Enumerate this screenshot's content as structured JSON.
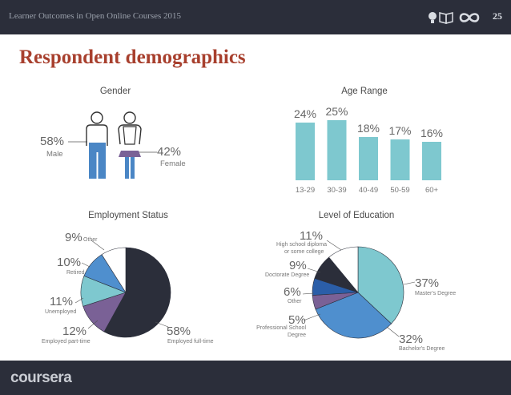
{
  "header": {
    "subtitle": "Learner Outcomes in Open Online Courses 2015",
    "page_number": "25",
    "icons": [
      "lightbulb-icon",
      "book-icon",
      "infinity-icon"
    ]
  },
  "title": "Respondent demographics",
  "footer": {
    "logo": "coursera"
  },
  "colors": {
    "header_bg": "#2b2e3a",
    "title": "#a8402e",
    "teal": "#7ec8cf",
    "navy": "#2b2e3a",
    "purple": "#7a6196",
    "blue": "#4a86c5",
    "steel_blue": "#4f8fce",
    "white": "#ffffff"
  },
  "gender": {
    "heading": "Gender",
    "male_pct": "58%",
    "male_label": "Male",
    "female_pct": "42%",
    "female_label": "Female"
  },
  "age": {
    "heading": "Age Range",
    "ylim": [
      0,
      25
    ]
  },
  "employment": {
    "heading": "Employment Status"
  },
  "education": {
    "heading": "Level of Education"
  },
  "chart_data": [
    {
      "type": "pie",
      "title": "Gender",
      "categories": [
        "Male",
        "Female"
      ],
      "values": [
        58,
        42
      ],
      "labels": [
        "58%",
        "42%"
      ]
    },
    {
      "type": "bar",
      "title": "Age Range",
      "categories": [
        "13-29",
        "30-39",
        "40-49",
        "50-59",
        "60+"
      ],
      "values": [
        24,
        25,
        18,
        17,
        16
      ],
      "labels": [
        "24%",
        "25%",
        "18%",
        "17%",
        "16%"
      ],
      "color": "#7ec8cf",
      "ylim": [
        0,
        25
      ]
    },
    {
      "type": "pie",
      "title": "Employment Status",
      "categories": [
        "Employed full-time",
        "Employed part-time",
        "Unemployed",
        "Retired",
        "Other"
      ],
      "values": [
        58,
        12,
        11,
        10,
        9
      ],
      "labels": [
        "58%",
        "12%",
        "11%",
        "10%",
        "9%"
      ],
      "colors": [
        "#2b2e3a",
        "#7a6196",
        "#7ec8cf",
        "#4f8fce",
        "#ffffff"
      ]
    },
    {
      "type": "pie",
      "title": "Level of Education",
      "categories": [
        "Master's Degree",
        "Bachelor's Degree",
        "Professional School Degree",
        "Other",
        "Doctorate Degree",
        "High school diploma or some college"
      ],
      "values": [
        37,
        32,
        5,
        6,
        9,
        11
      ],
      "labels": [
        "37%",
        "32%",
        "5%",
        "6%",
        "9%",
        "11%"
      ],
      "colors": [
        "#7ec8cf",
        "#4f8fce",
        "#7a6196",
        "#2b5ea8",
        "#2b2e3a",
        "#ffffff"
      ]
    }
  ]
}
